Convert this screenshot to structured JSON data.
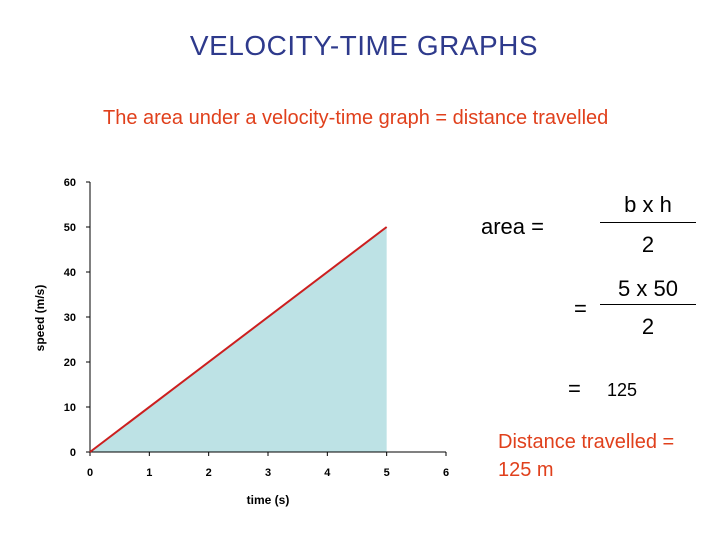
{
  "title": "VELOCITY-TIME GRAPHS",
  "subtitle": "The area under a velocity-time graph = distance travelled",
  "colors": {
    "title": "#2e3a8c",
    "subtitle": "#e0401c",
    "line": "#cc1f1f",
    "area": "#bde2e5"
  },
  "chart_data": {
    "type": "line",
    "xlabel": "time (s)",
    "ylabel": "speed (m/s)",
    "xlim": [
      0,
      6
    ],
    "ylim": [
      0,
      60
    ],
    "x_ticks": [
      0,
      1,
      2,
      3,
      4,
      5,
      6
    ],
    "y_ticks": [
      0,
      10,
      20,
      30,
      40,
      50,
      60
    ],
    "grid": false,
    "series": [
      {
        "x": [
          0,
          5
        ],
        "y": [
          0,
          50
        ],
        "shaded_area_to_axis": true
      }
    ]
  },
  "working": {
    "area_label": "area =",
    "num1": "b x h",
    "den1": "2",
    "eq2": "=",
    "num2": "5 x 50",
    "den2": "2",
    "eq3": "=",
    "result": "125"
  },
  "conclusion": "Distance travelled = 125 m"
}
